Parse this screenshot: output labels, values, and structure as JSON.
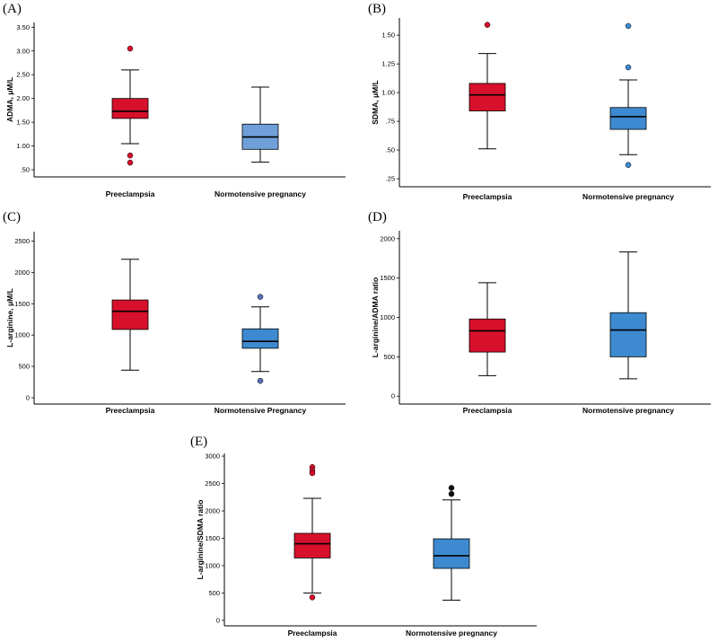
{
  "colors": {
    "preeclampsia": "#d7102b",
    "normotensive_default": "#3d8ad0",
    "normotensive_A": "#6e9fd9",
    "outlier_C_normo": "#5a6fb8",
    "outlier_E_normo": "#111111"
  },
  "chart_data": [
    {
      "panel": "(A)",
      "type": "box",
      "ylabel": "ADMA, μM/L",
      "ylim": [
        0.35,
        3.6
      ],
      "ticks": [
        0.5,
        1.0,
        1.5,
        2.0,
        2.5,
        3.0,
        3.5
      ],
      "tick_labels": [
        ".50",
        "1.00",
        "1.50",
        "2.00",
        "2.50",
        "3.00",
        "3.50"
      ],
      "categories": [
        "Preeclampsia",
        "Normotensive pregnancy"
      ],
      "boxes": [
        {
          "whisker_low": 1.05,
          "q1": 1.58,
          "median": 1.73,
          "q3": 2.0,
          "whisker_high": 2.6,
          "outliers": [
            3.05,
            0.8,
            0.65
          ],
          "color_key": "preeclampsia"
        },
        {
          "whisker_low": 0.66,
          "q1": 0.93,
          "median": 1.19,
          "q3": 1.46,
          "whisker_high": 2.24,
          "outliers": [],
          "color_key": "normotensive_A"
        }
      ]
    },
    {
      "panel": "(B)",
      "type": "box",
      "ylabel": "SDMA, μM/L",
      "ylim": [
        0.18,
        1.65
      ],
      "ticks": [
        0.25,
        0.5,
        0.75,
        1.0,
        1.25,
        1.5
      ],
      "tick_labels": [
        ".25",
        ".50",
        ".75",
        "1.00",
        "1.25",
        "1.50"
      ],
      "categories": [
        "Preeclampsia",
        "Normotensive pregnancy"
      ],
      "boxes": [
        {
          "whisker_low": 0.51,
          "q1": 0.84,
          "median": 0.98,
          "q3": 1.08,
          "whisker_high": 1.34,
          "outliers": [
            1.59
          ],
          "color_key": "preeclampsia"
        },
        {
          "whisker_low": 0.46,
          "q1": 0.68,
          "median": 0.79,
          "q3": 0.87,
          "whisker_high": 1.11,
          "outliers": [
            1.58,
            1.22,
            0.37
          ],
          "color_key": "normotensive_default"
        }
      ]
    },
    {
      "panel": "(C)",
      "type": "box",
      "ylabel": "L-arginine, μM/L",
      "ylim": [
        -100,
        2650
      ],
      "ticks": [
        0,
        500,
        1000,
        1500,
        2000,
        2500
      ],
      "tick_labels": [
        "0",
        "500",
        "1000",
        "1500",
        "2000",
        "2500"
      ],
      "categories": [
        "Preeclampsia",
        "Normotensive Pregnancy"
      ],
      "boxes": [
        {
          "whisker_low": 440,
          "q1": 1090,
          "median": 1380,
          "q3": 1560,
          "whisker_high": 2210,
          "outliers": [],
          "color_key": "preeclampsia"
        },
        {
          "whisker_low": 420,
          "q1": 790,
          "median": 900,
          "q3": 1100,
          "whisker_high": 1450,
          "outliers": [
            1610,
            270
          ],
          "color_key": "normotensive_default",
          "outlier_color_key": "outlier_C_normo"
        }
      ]
    },
    {
      "panel": "(D)",
      "type": "box",
      "ylabel": "L-arginine/ADMA ratio",
      "ylim": [
        -100,
        2100
      ],
      "ticks": [
        0,
        500,
        1000,
        1500,
        2000
      ],
      "tick_labels": [
        "0",
        "500",
        "1000",
        "1500",
        "2000"
      ],
      "categories": [
        "Preeclampsia",
        "Normotensive pregnancy"
      ],
      "boxes": [
        {
          "whisker_low": 260,
          "q1": 560,
          "median": 830,
          "q3": 980,
          "whisker_high": 1440,
          "outliers": [],
          "color_key": "preeclampsia"
        },
        {
          "whisker_low": 220,
          "q1": 500,
          "median": 840,
          "q3": 1060,
          "whisker_high": 1830,
          "outliers": [],
          "color_key": "normotensive_default"
        }
      ]
    },
    {
      "panel": "(E)",
      "type": "box",
      "ylabel": "L-arginine/SDMA ratio",
      "ylim": [
        -100,
        3050
      ],
      "ticks": [
        0,
        500,
        1000,
        1500,
        2000,
        2500,
        3000
      ],
      "tick_labels": [
        "0",
        "500",
        "1000",
        "1500",
        "2000",
        "2500",
        "3000"
      ],
      "categories": [
        "Preeclampsia",
        "Normotensive pregnancy"
      ],
      "boxes": [
        {
          "whisker_low": 500,
          "q1": 1140,
          "median": 1400,
          "q3": 1590,
          "whisker_high": 2230,
          "outliers": [
            2800,
            2740,
            2690,
            420
          ],
          "color_key": "preeclampsia"
        },
        {
          "whisker_low": 370,
          "q1": 950,
          "median": 1180,
          "q3": 1490,
          "whisker_high": 2200,
          "outliers": [
            2420,
            2310
          ],
          "color_key": "normotensive_default",
          "outlier_color_key": "outlier_E_normo"
        }
      ]
    }
  ]
}
